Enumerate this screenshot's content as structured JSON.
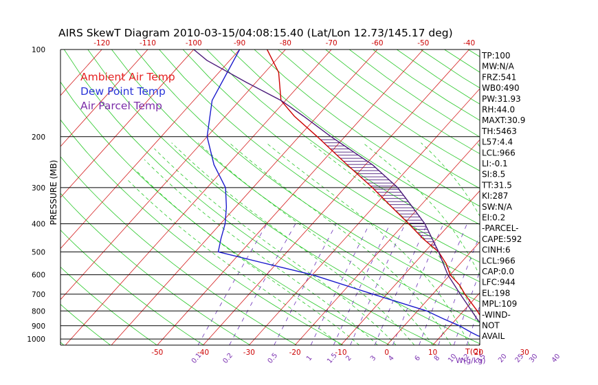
{
  "chart_data": {
    "type": "line",
    "title": "AIRS SkewT Diagram 2010-03-15/04:08:15.40 (Lat/Lon 12.73/145.17 deg)",
    "ylabel": "PRESSURE (MB)",
    "xlabel_bottom": "T(C)",
    "mixing_label": "W(g/kg)",
    "pressure_ticks": [
      "100",
      "200",
      "300",
      "400",
      "500",
      "600",
      "700",
      "800",
      "900",
      "1000"
    ],
    "top_ticks": [
      "-120",
      "-110",
      "-100",
      "-90",
      "-80",
      "-70",
      "-60",
      "-50",
      "-40"
    ],
    "bottom_ticks": [
      "-50",
      "-40",
      "-30",
      "-20",
      "-10",
      "0",
      "10",
      "20",
      "30"
    ],
    "mixing_ratio_ticks": [
      "0.1",
      "0.2",
      "0.5",
      "1",
      "1.5",
      "2",
      "3",
      "4",
      "6",
      "8",
      "10",
      "12",
      "15",
      "20",
      "25",
      "30",
      "40"
    ],
    "legend": [
      {
        "name": "Ambient Air Temp",
        "color": "#e52222"
      },
      {
        "name": "Dew Point Temp",
        "color": "#2a35d8"
      },
      {
        "name": "Air Parcel Temp",
        "color": "#7b2da8"
      }
    ],
    "series": [
      {
        "name": "Ambient Air Temp",
        "color": "#cc0000",
        "points": [
          [
            1000,
            24
          ],
          [
            975,
            21.5
          ],
          [
            950,
            20
          ],
          [
            900,
            18
          ],
          [
            850,
            15.5
          ],
          [
            800,
            13
          ],
          [
            700,
            7
          ],
          [
            650,
            4
          ],
          [
            600,
            0
          ],
          [
            550,
            -3
          ],
          [
            500,
            -7
          ],
          [
            450,
            -13
          ],
          [
            400,
            -19
          ],
          [
            350,
            -26
          ],
          [
            300,
            -34
          ],
          [
            250,
            -44
          ],
          [
            200,
            -56
          ],
          [
            170,
            -65
          ],
          [
            150,
            -71
          ],
          [
            120,
            -77
          ],
          [
            100,
            -84
          ]
        ]
      },
      {
        "name": "Dew Point Temp",
        "color": "#1a1acc",
        "points": [
          [
            1000,
            21
          ],
          [
            975,
            18
          ],
          [
            950,
            16
          ],
          [
            900,
            12
          ],
          [
            850,
            7
          ],
          [
            800,
            2
          ],
          [
            700,
            -13
          ],
          [
            600,
            -30
          ],
          [
            550,
            -42
          ],
          [
            500,
            -55
          ],
          [
            450,
            -57
          ],
          [
            400,
            -59
          ],
          [
            350,
            -62
          ],
          [
            300,
            -66
          ],
          [
            250,
            -73
          ],
          [
            200,
            -80
          ],
          [
            150,
            -86
          ],
          [
            100,
            -90
          ]
        ]
      },
      {
        "name": "Air Parcel Temp",
        "color": "#4a1a7a",
        "points": [
          [
            1000,
            24
          ],
          [
            966,
            20.5
          ],
          [
            944,
            19.3
          ],
          [
            900,
            17
          ],
          [
            850,
            14.4
          ],
          [
            800,
            11.8
          ],
          [
            700,
            6
          ],
          [
            600,
            -0.5
          ],
          [
            500,
            -7
          ],
          [
            400,
            -15.5
          ],
          [
            350,
            -21.5
          ],
          [
            300,
            -28.5
          ],
          [
            250,
            -38.5
          ],
          [
            200,
            -53
          ],
          [
            170,
            -63
          ],
          [
            150,
            -71
          ],
          [
            130,
            -82
          ],
          [
            109,
            -95
          ],
          [
            100,
            -100
          ]
        ]
      }
    ],
    "indices": [
      "TP:100",
      "MW:N/A",
      "FRZ:541",
      "WB0:490",
      "PW:31.93",
      "RH:44.0",
      "MAXT:30.9",
      "TH:5463",
      "L57:4.4",
      "LCL:966",
      "LI:-0.1",
      "SI:8.5",
      "TT:31.5",
      "KI:287",
      "SW:N/A",
      "EI:0.2",
      "-PARCEL-",
      "CAPE:592",
      "CINH:6",
      "LCL:966",
      "CAP:0.0",
      "LFC:944",
      "EL:198",
      "MPL:109",
      "-WIND-",
      "NOT",
      "AVAIL"
    ]
  }
}
